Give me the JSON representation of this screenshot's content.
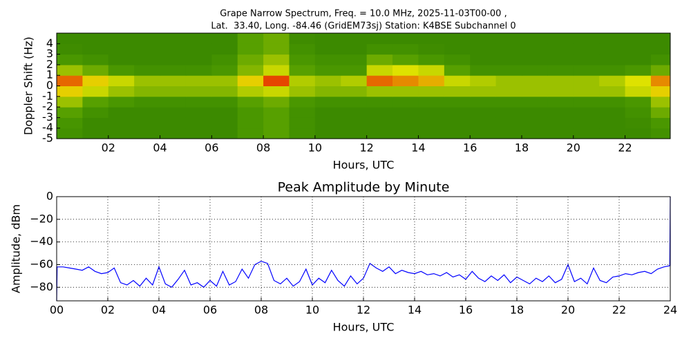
{
  "chart_data": [
    {
      "type": "heatmap",
      "title": [
        "Grape Narrow Spectrum, Freq. = 10.0 MHz, 2025-11-03T00-00 ,",
        "Lat.  33.40, Long. -84.46 (GridEM73sj) Station: K4BSE Subchannel 0"
      ],
      "xlabel": "Hours, UTC",
      "ylabel": "Doppler Shift (Hz)",
      "xlim": [
        0,
        23.75
      ],
      "ylim": [
        -5,
        5
      ],
      "xticks": [
        {
          "value": 2,
          "label": "02"
        },
        {
          "value": 4,
          "label": "04"
        },
        {
          "value": 6,
          "label": "06"
        },
        {
          "value": 8,
          "label": "08"
        },
        {
          "value": 10,
          "label": "10"
        },
        {
          "value": 12,
          "label": "12"
        },
        {
          "value": 14,
          "label": "14"
        },
        {
          "value": 16,
          "label": "16"
        },
        {
          "value": 18,
          "label": "18"
        },
        {
          "value": 20,
          "label": "20"
        },
        {
          "value": 22,
          "label": "22"
        }
      ],
      "yticks": [
        -5,
        -4,
        -3,
        -2,
        -1,
        0,
        1,
        2,
        3,
        4
      ],
      "colormap": [
        "#1f6e00",
        "#4f9c00",
        "#e6e600",
        "#e60000"
      ],
      "x_bins": [
        0,
        1,
        2,
        3,
        4,
        5,
        6,
        7,
        8,
        9,
        10,
        11,
        12,
        13,
        14,
        15,
        16,
        17,
        18,
        19,
        20,
        21,
        22,
        23,
        24
      ],
      "y_bins": [
        -5,
        -4,
        -3,
        -2,
        -1,
        0,
        1,
        2,
        3,
        4,
        5
      ],
      "z": [
        [
          0.25,
          0.2,
          0.2,
          0.2,
          0.2,
          0.2,
          0.2,
          0.3,
          0.35,
          0.25,
          0.2,
          0.2,
          0.2,
          0.2,
          0.2,
          0.2,
          0.2,
          0.2,
          0.2,
          0.2,
          0.2,
          0.2,
          0.2,
          0.25
        ],
        [
          0.28,
          0.2,
          0.2,
          0.2,
          0.2,
          0.2,
          0.2,
          0.3,
          0.35,
          0.25,
          0.2,
          0.2,
          0.2,
          0.2,
          0.2,
          0.2,
          0.2,
          0.2,
          0.2,
          0.2,
          0.2,
          0.2,
          0.22,
          0.3
        ],
        [
          0.35,
          0.25,
          0.2,
          0.2,
          0.2,
          0.2,
          0.2,
          0.3,
          0.35,
          0.25,
          0.2,
          0.2,
          0.2,
          0.2,
          0.2,
          0.2,
          0.2,
          0.2,
          0.2,
          0.2,
          0.2,
          0.2,
          0.25,
          0.4
        ],
        [
          0.5,
          0.35,
          0.3,
          0.25,
          0.25,
          0.25,
          0.25,
          0.35,
          0.4,
          0.3,
          0.25,
          0.25,
          0.25,
          0.25,
          0.25,
          0.25,
          0.25,
          0.25,
          0.25,
          0.25,
          0.25,
          0.25,
          0.3,
          0.5
        ],
        [
          0.7,
          0.6,
          0.5,
          0.45,
          0.45,
          0.45,
          0.45,
          0.55,
          0.6,
          0.5,
          0.45,
          0.45,
          0.5,
          0.5,
          0.5,
          0.5,
          0.5,
          0.5,
          0.5,
          0.5,
          0.5,
          0.5,
          0.6,
          0.7
        ],
        [
          0.85,
          0.7,
          0.6,
          0.5,
          0.5,
          0.5,
          0.5,
          0.7,
          0.9,
          0.55,
          0.5,
          0.55,
          0.85,
          0.8,
          0.75,
          0.6,
          0.55,
          0.5,
          0.5,
          0.5,
          0.5,
          0.55,
          0.65,
          0.8
        ],
        [
          0.5,
          0.4,
          0.3,
          0.25,
          0.25,
          0.25,
          0.3,
          0.45,
          0.6,
          0.35,
          0.3,
          0.3,
          0.6,
          0.65,
          0.6,
          0.35,
          0.25,
          0.25,
          0.25,
          0.25,
          0.25,
          0.25,
          0.3,
          0.4
        ],
        [
          0.3,
          0.25,
          0.2,
          0.2,
          0.2,
          0.2,
          0.25,
          0.4,
          0.5,
          0.3,
          0.25,
          0.25,
          0.4,
          0.35,
          0.3,
          0.25,
          0.2,
          0.2,
          0.2,
          0.2,
          0.2,
          0.2,
          0.2,
          0.25
        ],
        [
          0.22,
          0.2,
          0.2,
          0.2,
          0.2,
          0.2,
          0.2,
          0.35,
          0.4,
          0.25,
          0.2,
          0.2,
          0.25,
          0.25,
          0.22,
          0.2,
          0.2,
          0.2,
          0.2,
          0.2,
          0.2,
          0.2,
          0.2,
          0.2
        ],
        [
          0.2,
          0.2,
          0.2,
          0.2,
          0.2,
          0.2,
          0.2,
          0.35,
          0.4,
          0.22,
          0.2,
          0.2,
          0.2,
          0.2,
          0.2,
          0.2,
          0.2,
          0.2,
          0.2,
          0.2,
          0.2,
          0.2,
          0.2,
          0.2
        ]
      ]
    },
    {
      "type": "line",
      "title": "Peak Amplitude by Minute",
      "xlabel": "Hours, UTC",
      "ylabel": "Amplitude, dBm",
      "xlim": [
        0,
        24
      ],
      "ylim": [
        -92,
        0
      ],
      "grid": true,
      "xticks": [
        {
          "value": 0,
          "label": "00"
        },
        {
          "value": 2,
          "label": "02"
        },
        {
          "value": 4,
          "label": "04"
        },
        {
          "value": 6,
          "label": "06"
        },
        {
          "value": 8,
          "label": "08"
        },
        {
          "value": 10,
          "label": "10"
        },
        {
          "value": 12,
          "label": "12"
        },
        {
          "value": 14,
          "label": "14"
        },
        {
          "value": 16,
          "label": "16"
        },
        {
          "value": 18,
          "label": "18"
        },
        {
          "value": 20,
          "label": "20"
        },
        {
          "value": 22,
          "label": "22"
        },
        {
          "value": 24,
          "label": "24"
        }
      ],
      "yticks": [
        0,
        {
          "value": -20,
          "label": "−20"
        },
        {
          "value": -40,
          "label": "−40"
        },
        {
          "value": -60,
          "label": "−60"
        },
        {
          "value": -80,
          "label": "−80"
        }
      ],
      "color": "#0000ff",
      "x": [
        0,
        0.02,
        0.25,
        0.5,
        0.75,
        1,
        1.25,
        1.5,
        1.75,
        2,
        2.25,
        2.5,
        2.75,
        3,
        3.25,
        3.5,
        3.75,
        4,
        4.25,
        4.5,
        4.75,
        5,
        5.25,
        5.5,
        5.75,
        6,
        6.25,
        6.5,
        6.75,
        7,
        7.25,
        7.5,
        7.75,
        8,
        8.25,
        8.5,
        8.75,
        9,
        9.25,
        9.5,
        9.75,
        10,
        10.25,
        10.5,
        10.75,
        11,
        11.25,
        11.5,
        11.75,
        12,
        12.25,
        12.5,
        12.75,
        13,
        13.25,
        13.5,
        13.75,
        14,
        14.25,
        14.5,
        14.75,
        15,
        15.25,
        15.5,
        15.75,
        16,
        16.25,
        16.5,
        16.75,
        17,
        17.25,
        17.5,
        17.75,
        18,
        18.25,
        18.5,
        18.75,
        19,
        19.25,
        19.5,
        19.75,
        20,
        20.25,
        20.5,
        20.75,
        21,
        21.25,
        21.5,
        21.75,
        22,
        22.25,
        22.5,
        22.75,
        23,
        23.25,
        23.5,
        23.75,
        23.98,
        24
      ],
      "values": [
        -92,
        -62,
        -62,
        -63,
        -64,
        -65,
        -62,
        -66,
        -68,
        -67,
        -63,
        -76,
        -78,
        -74,
        -79,
        -72,
        -78,
        -62,
        -77,
        -80,
        -73,
        -65,
        -78,
        -76,
        -80,
        -74,
        -79,
        -66,
        -78,
        -75,
        -64,
        -72,
        -60,
        -57,
        -59,
        -74,
        -77,
        -72,
        -79,
        -75,
        -64,
        -78,
        -72,
        -76,
        -65,
        -74,
        -79,
        -70,
        -77,
        -72,
        -59,
        -63,
        -66,
        -62,
        -68,
        -65,
        -67,
        -68,
        -66,
        -69,
        -68,
        -70,
        -67,
        -71,
        -69,
        -73,
        -66,
        -72,
        -75,
        -70,
        -74,
        -69,
        -76,
        -71,
        -74,
        -77,
        -72,
        -75,
        -70,
        -76,
        -73,
        -60,
        -75,
        -72,
        -77,
        -63,
        -74,
        -76,
        -71,
        -70,
        -68,
        -69,
        -67,
        -66,
        -68,
        -64,
        -62,
        -61,
        0
      ]
    }
  ]
}
